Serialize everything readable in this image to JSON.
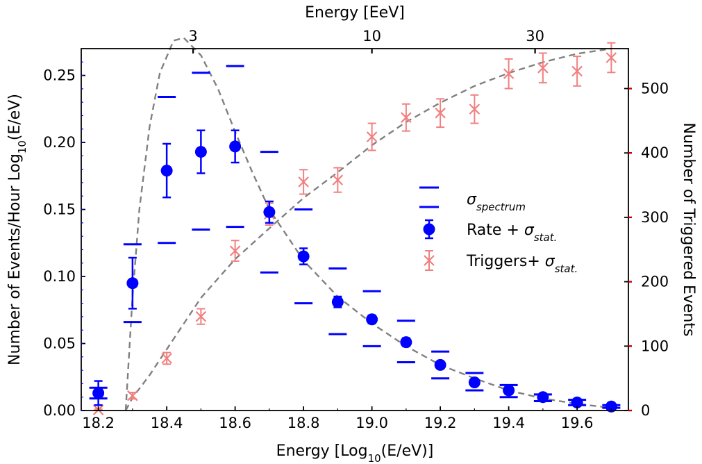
{
  "chart_data": {
    "type": "scatter",
    "axes": {
      "x_bottom": {
        "label": "Energy [Log",
        "label_sub": "10",
        "label_tail": "(E/eV)]",
        "range": [
          18.15,
          19.75
        ],
        "ticks": [
          18.2,
          18.4,
          18.6,
          18.8,
          19.0,
          19.2,
          19.4,
          19.6
        ],
        "tick_labels": [
          "18.2",
          "18.4",
          "18.6",
          "18.8",
          "19.0",
          "19.2",
          "19.4",
          "19.6"
        ]
      },
      "x_top": {
        "label": "Energy [EeV]",
        "ticks_eev": [
          3,
          10,
          30
        ],
        "tick_labels": [
          "3",
          "10",
          "30"
        ]
      },
      "y_left": {
        "label": "Number of Events/Hour Log",
        "label_sub": "10",
        "label_tail": "(E/eV)",
        "range": [
          0,
          0.27
        ],
        "ticks": [
          0.0,
          0.05,
          0.1,
          0.15,
          0.2,
          0.25
        ],
        "tick_labels": [
          "0.00",
          "0.05",
          "0.10",
          "0.15",
          "0.20",
          "0.25"
        ]
      },
      "y_right": {
        "label": "Number of Triggered Events",
        "range": [
          0,
          562
        ],
        "ticks": [
          0,
          100,
          200,
          300,
          400,
          500
        ],
        "tick_labels": [
          "0",
          "100",
          "200",
          "300",
          "400",
          "500"
        ]
      }
    },
    "series": [
      {
        "name": "Rate + σstat.",
        "axis": "left",
        "color": "#0000ff",
        "x": [
          18.2,
          18.3,
          18.4,
          18.5,
          18.6,
          18.7,
          18.8,
          18.9,
          19.0,
          19.1,
          19.2,
          19.3,
          19.4,
          19.5,
          19.6,
          19.7
        ],
        "y": [
          0.013,
          0.095,
          0.179,
          0.193,
          0.197,
          0.148,
          0.115,
          0.081,
          0.068,
          0.051,
          0.034,
          0.021,
          0.015,
          0.01,
          0.006,
          0.003
        ],
        "err": [
          0.009,
          0.019,
          0.02,
          0.016,
          0.012,
          0.008,
          0.006,
          0.004,
          0.003,
          0.003,
          0.002,
          0.002,
          0.001,
          0.001,
          0.001,
          0.001
        ]
      },
      {
        "name": "Triggers+ σstat.",
        "axis": "right",
        "color": "#f08080",
        "x": [
          18.2,
          18.3,
          18.4,
          18.5,
          18.6,
          18.7,
          18.8,
          18.9,
          19.0,
          19.1,
          19.2,
          19.3,
          19.4,
          19.5,
          19.6,
          19.7
        ],
        "y": [
          1,
          23,
          81,
          146,
          248,
          305,
          355,
          358,
          425,
          455,
          462,
          468,
          523,
          532,
          527,
          548
        ],
        "err": [
          1,
          5,
          9,
          12,
          16,
          17,
          19,
          19,
          21,
          21,
          22,
          22,
          23,
          23,
          23,
          23
        ]
      }
    ],
    "spectrum_band": {
      "name": "σspectrum",
      "axis": "left",
      "color": "#0000ff",
      "x": [
        18.2,
        18.3,
        18.4,
        18.5,
        18.6,
        18.7,
        18.8,
        18.9,
        19.0,
        19.1,
        19.2,
        19.3,
        19.4,
        19.5,
        19.6,
        19.7
      ],
      "upper": [
        0.017,
        0.124,
        0.234,
        0.252,
        0.257,
        0.193,
        0.15,
        0.106,
        0.089,
        0.067,
        0.044,
        0.028,
        0.019,
        0.012,
        0.008,
        0.004
      ],
      "lower": [
        0.009,
        0.066,
        0.125,
        0.135,
        0.137,
        0.103,
        0.08,
        0.057,
        0.048,
        0.036,
        0.024,
        0.015,
        0.01,
        0.007,
        0.004,
        0.002
      ]
    },
    "fit_curves": [
      {
        "axis": "left",
        "style": "dashed",
        "color": "#808080",
        "x": [
          18.28,
          18.3,
          18.32,
          18.35,
          18.38,
          18.42,
          18.45,
          18.5,
          18.55,
          18.6,
          18.65,
          18.7,
          18.8,
          18.9,
          19.0,
          19.1,
          19.2,
          19.3,
          19.4,
          19.5,
          19.6,
          19.7
        ],
        "y": [
          0.0,
          0.085,
          0.15,
          0.212,
          0.252,
          0.276,
          0.278,
          0.265,
          0.24,
          0.208,
          0.178,
          0.15,
          0.112,
          0.085,
          0.065,
          0.048,
          0.034,
          0.024,
          0.015,
          0.009,
          0.005,
          0.002
        ]
      },
      {
        "axis": "right",
        "style": "dashed",
        "color": "#808080",
        "x": [
          18.28,
          18.3,
          18.35,
          18.4,
          18.5,
          18.6,
          18.7,
          18.8,
          18.9,
          19.0,
          19.1,
          19.2,
          19.3,
          19.4,
          19.5,
          19.6,
          19.7
        ],
        "y": [
          0,
          20,
          55,
          95,
          175,
          235,
          283,
          330,
          370,
          412,
          448,
          478,
          504,
          524,
          541,
          554,
          562
        ]
      }
    ],
    "legend": {
      "position": "center-right",
      "entries": [
        {
          "symbol": "band",
          "label": "σ",
          "label_sub": "spectrum"
        },
        {
          "symbol": "dot",
          "label": "Rate + σ",
          "label_sub": "stat."
        },
        {
          "symbol": "cross",
          "label": "Triggers+ σ",
          "label_sub": "stat."
        }
      ]
    }
  }
}
